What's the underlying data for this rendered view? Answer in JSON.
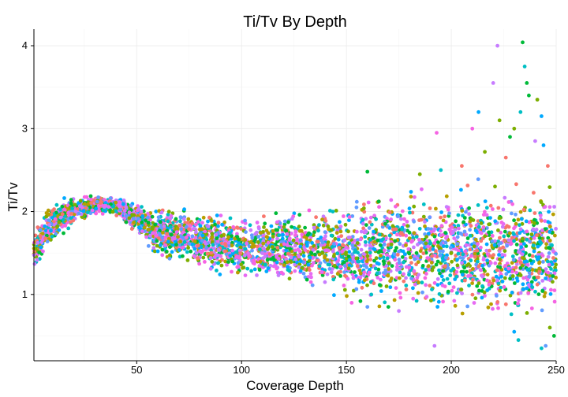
{
  "chart_data": {
    "type": "scatter",
    "title": "Ti/Tv By Depth",
    "xlabel": "Coverage Depth",
    "ylabel": "Ti/Tv",
    "xlim": [
      1,
      250
    ],
    "ylim": [
      0.2,
      4.2
    ],
    "x_ticks": [
      50,
      100,
      150,
      200,
      250
    ],
    "y_ticks": [
      1,
      2,
      3,
      4
    ],
    "grid": true,
    "legend": "none",
    "colors": [
      "#F8766D",
      "#7CAE00",
      "#00BFC4",
      "#C77CFF",
      "#00BA38",
      "#619CFF",
      "#F564E3",
      "#B79F00",
      "#00A9FF",
      "#E76BF3"
    ],
    "band": [
      {
        "x": 1,
        "low": 1.3,
        "high": 1.8
      },
      {
        "x": 10,
        "low": 1.6,
        "high": 2.1
      },
      {
        "x": 20,
        "low": 1.85,
        "high": 2.2
      },
      {
        "x": 30,
        "low": 1.95,
        "high": 2.2
      },
      {
        "x": 40,
        "low": 1.95,
        "high": 2.18
      },
      {
        "x": 50,
        "low": 1.7,
        "high": 2.1
      },
      {
        "x": 60,
        "low": 1.45,
        "high": 2.05
      },
      {
        "x": 75,
        "low": 1.35,
        "high": 2.0
      },
      {
        "x": 100,
        "low": 1.2,
        "high": 1.95
      },
      {
        "x": 125,
        "low": 1.1,
        "high": 2.0
      },
      {
        "x": 150,
        "low": 1.0,
        "high": 2.05
      },
      {
        "x": 175,
        "low": 0.95,
        "high": 2.1
      },
      {
        "x": 200,
        "low": 0.9,
        "high": 2.15
      },
      {
        "x": 225,
        "low": 0.8,
        "high": 2.2
      },
      {
        "x": 250,
        "low": 0.8,
        "high": 2.2
      }
    ],
    "outliers": [
      {
        "x": 192,
        "y": 0.38,
        "color": "#C77CFF"
      },
      {
        "x": 193,
        "y": 2.95,
        "color": "#F564E3"
      },
      {
        "x": 210,
        "y": 3.0,
        "color": "#F564E3"
      },
      {
        "x": 213,
        "y": 3.2,
        "color": "#00A9FF"
      },
      {
        "x": 216,
        "y": 2.72,
        "color": "#7CAE00"
      },
      {
        "x": 220,
        "y": 3.55,
        "color": "#C77CFF"
      },
      {
        "x": 222,
        "y": 4.0,
        "color": "#C77CFF"
      },
      {
        "x": 223,
        "y": 3.1,
        "color": "#7CAE00"
      },
      {
        "x": 226,
        "y": 2.65,
        "color": "#F8766D"
      },
      {
        "x": 228,
        "y": 2.9,
        "color": "#00BA38"
      },
      {
        "x": 230,
        "y": 3.0,
        "color": "#7CAE00"
      },
      {
        "x": 233,
        "y": 3.2,
        "color": "#00BFC4"
      },
      {
        "x": 234,
        "y": 4.04,
        "color": "#00BA38"
      },
      {
        "x": 235,
        "y": 3.75,
        "color": "#00BFC4"
      },
      {
        "x": 236,
        "y": 3.55,
        "color": "#00BA38"
      },
      {
        "x": 237,
        "y": 3.4,
        "color": "#00BA38"
      },
      {
        "x": 240,
        "y": 2.85,
        "color": "#C77CFF"
      },
      {
        "x": 241,
        "y": 3.35,
        "color": "#7CAE00"
      },
      {
        "x": 243,
        "y": 3.15,
        "color": "#00A9FF"
      },
      {
        "x": 244,
        "y": 2.8,
        "color": "#00A9FF"
      },
      {
        "x": 246,
        "y": 2.55,
        "color": "#F8766D"
      },
      {
        "x": 230,
        "y": 0.55,
        "color": "#00A9FF"
      },
      {
        "x": 232,
        "y": 0.45,
        "color": "#00BFC4"
      },
      {
        "x": 243,
        "y": 0.35,
        "color": "#00BFC4"
      },
      {
        "x": 245,
        "y": 0.38,
        "color": "#619CFF"
      },
      {
        "x": 247,
        "y": 0.6,
        "color": "#7CAE00"
      },
      {
        "x": 249,
        "y": 0.5,
        "color": "#00BA38"
      },
      {
        "x": 205,
        "y": 2.55,
        "color": "#F8766D"
      },
      {
        "x": 195,
        "y": 2.5,
        "color": "#00BFC4"
      },
      {
        "x": 185,
        "y": 2.45,
        "color": "#7CAE00"
      },
      {
        "x": 160,
        "y": 2.48,
        "color": "#00BA38"
      },
      {
        "x": 175,
        "y": 0.8,
        "color": "#C77CFF"
      },
      {
        "x": 160,
        "y": 0.85,
        "color": "#619CFF"
      }
    ],
    "scatter_density": 3600
  }
}
